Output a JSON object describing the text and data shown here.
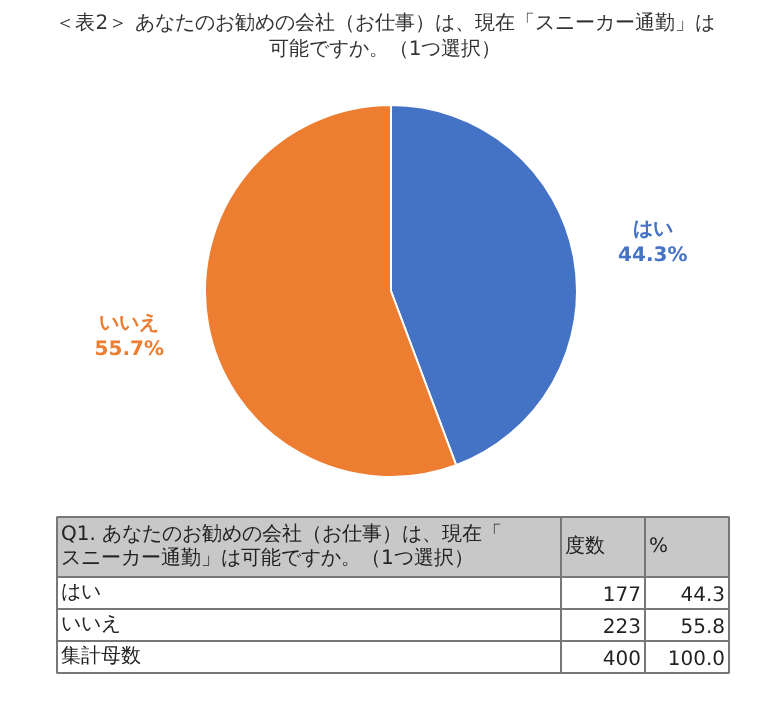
{
  "chart_data": {
    "type": "pie",
    "title": "＜表2＞ あなたのお勧めの会社（お仕事）は、現在「スニーカー通勤」は可能ですか。（1つ選択）",
    "categories": [
      "はい",
      "いいえ"
    ],
    "values": [
      44.3,
      55.7
    ],
    "colors": [
      "#4472c4",
      "#ed7d31"
    ],
    "value_labels": [
      "44.3%",
      "55.7%"
    ],
    "annotations": [
      "Q1. あなたのお勧めの会社（お仕事）は、現在「スニーカー通勤」は可能ですか。（1つ選択）",
      "度数",
      "%",
      "はい",
      "177",
      "44.3",
      "いいえ",
      "223",
      "55.8",
      "集計母数",
      "400",
      "100.0"
    ]
  }
}
